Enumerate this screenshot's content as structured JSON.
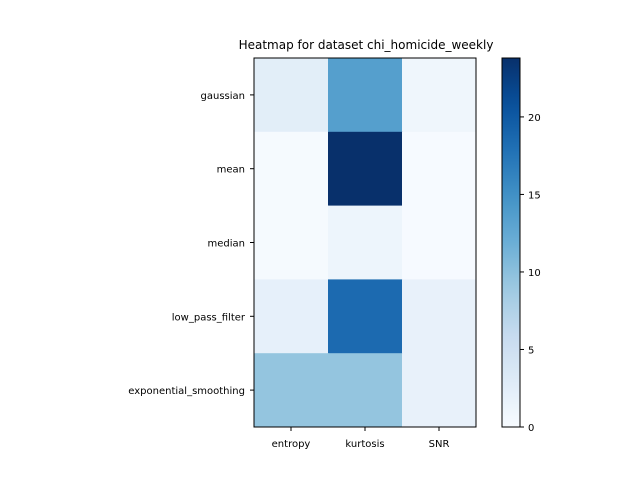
{
  "chart_data": {
    "type": "heatmap",
    "title": "Heatmap for dataset chi_homicide_weekly",
    "x_categories": [
      "entropy",
      "kurtosis",
      "SNR"
    ],
    "y_categories": [
      "gaussian",
      "mean",
      "median",
      "low_pass_filter",
      "exponential_smoothing"
    ],
    "values": [
      [
        2.5,
        13.5,
        1.0
      ],
      [
        0.2,
        23.8,
        0.1
      ],
      [
        0.2,
        1.2,
        0.1
      ],
      [
        2.0,
        18.5,
        1.8
      ],
      [
        9.5,
        9.5,
        1.8
      ]
    ],
    "colormap": "Blues",
    "vmin": 0,
    "vmax": 23.8,
    "colorbar_ticks": [
      0,
      5,
      10,
      15,
      20
    ],
    "colorbar_tick_labels": [
      "0",
      "5",
      "10",
      "15",
      "20"
    ]
  }
}
